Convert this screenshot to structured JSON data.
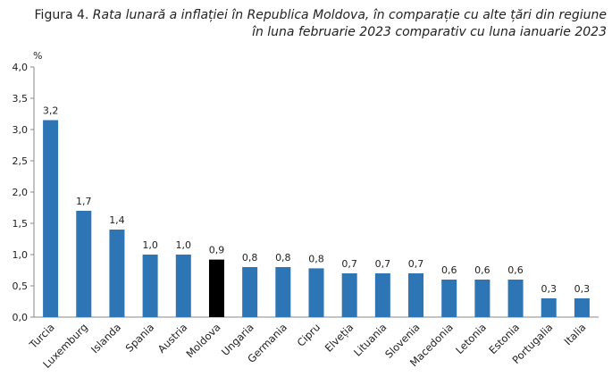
{
  "title": {
    "prefix": "Figura 4.",
    "line1": "Rata lunară a inflației în Republica Moldova, în comparație cu alte țări din regiune",
    "line2": "în luna februarie 2023 comparativ cu luna ianuarie 2023"
  },
  "chart_data": {
    "type": "bar",
    "unit": "%",
    "categories": [
      "Turcia",
      "Luxemburg",
      "Islanda",
      "Spania",
      "Austria",
      "Moldova",
      "Ungaria",
      "Germania",
      "Cipru",
      "Elveția",
      "Lituania",
      "Slovenia",
      "Macedonia",
      "Letonia",
      "Estonia",
      "Portugalia",
      "Italia"
    ],
    "values": [
      3.15,
      1.7,
      1.4,
      1.0,
      1.0,
      0.92,
      0.8,
      0.8,
      0.78,
      0.7,
      0.7,
      0.7,
      0.6,
      0.6,
      0.6,
      0.3,
      0.3
    ],
    "data_labels": [
      "3,2",
      "1,7",
      "1,4",
      "1,0",
      "1,0",
      "0,9",
      "0,8",
      "0,8",
      "0,8",
      "0,7",
      "0,7",
      "0,7",
      "0,6",
      "0,6",
      "0,6",
      "0,3",
      "0,3"
    ],
    "ylim": [
      0,
      4.0
    ],
    "yticks": [
      "0,0",
      "0,5",
      "1,0",
      "1,5",
      "2,0",
      "2,5",
      "3,0",
      "3,5",
      "4,0"
    ],
    "grid": false,
    "legend": "none",
    "colors": {
      "default": "#2E75B6",
      "highlight": "#000000"
    },
    "highlight_category": "Moldova"
  }
}
